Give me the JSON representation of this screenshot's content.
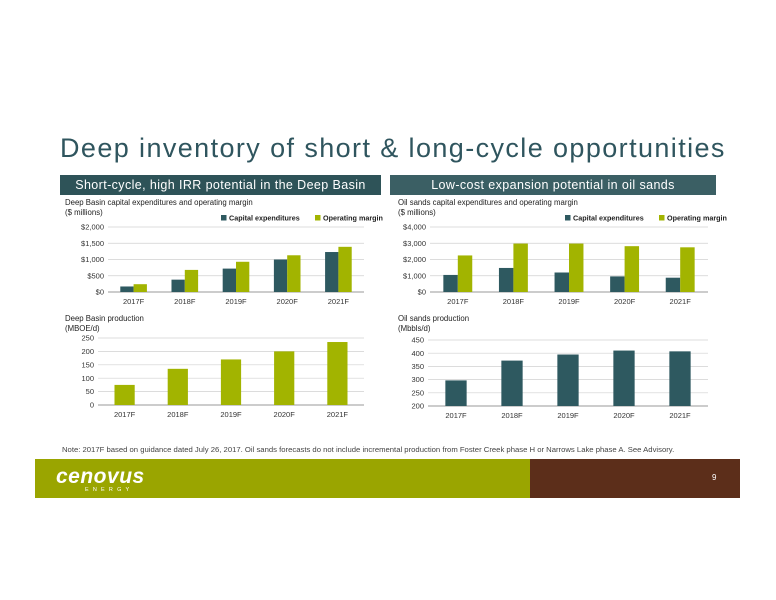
{
  "slide": {
    "title": "Deep inventory of short & long-cycle opportunities",
    "left_banner": "Short-cycle, high IRR potential in the Deep Basin",
    "right_banner": "Low-cost expansion potential in oil sands",
    "note": "Note: 2017F based on guidance dated July 26, 2017. Oil sands forecasts do not include incremental production from Foster Creek phase H or Narrows Lake phase A. See Advisory.",
    "logo_text": "cenovus",
    "logo_subtext": "ENERGY",
    "page_number": "9"
  },
  "colors": {
    "capex": "#2e5960",
    "margin": "#a2b400",
    "title": "#2f555e",
    "banner": "#2e5358",
    "footer": "#9aa500",
    "footer_accent": "#5c2e1a"
  },
  "chart_data": [
    {
      "id": "deep-basin-capex",
      "type": "bar",
      "title_line1": "Deep Basin capital expenditures and operating margin",
      "title_line2": "($ millions)",
      "categories": [
        "2017F",
        "2018F",
        "2019F",
        "2020F",
        "2021F"
      ],
      "series": [
        {
          "name": "Capital expenditures",
          "values": [
            170,
            380,
            720,
            1000,
            1230
          ],
          "color": "#2e5960"
        },
        {
          "name": "Operating margin",
          "values": [
            240,
            680,
            930,
            1130,
            1390
          ],
          "color": "#a2b400"
        }
      ],
      "ylim": [
        0,
        2000
      ],
      "yticks": [
        0,
        500,
        1000,
        1500,
        2000
      ],
      "ytick_labels": [
        "$0",
        "$500",
        "$1,000",
        "$1,500",
        "$2,000"
      ],
      "legend": "top-right",
      "grid": true
    },
    {
      "id": "oil-sands-capex",
      "type": "bar",
      "title_line1": "Oil sands capital expenditures and operating margin",
      "title_line2": "($ millions)",
      "categories": [
        "2017F",
        "2018F",
        "2019F",
        "2020F",
        "2021F"
      ],
      "series": [
        {
          "name": "Capital expenditures",
          "values": [
            1050,
            1480,
            1200,
            960,
            880
          ],
          "color": "#2e5960"
        },
        {
          "name": "Operating margin",
          "values": [
            2250,
            2980,
            2980,
            2820,
            2750
          ],
          "color": "#a2b400"
        }
      ],
      "ylim": [
        0,
        4000
      ],
      "yticks": [
        0,
        1000,
        2000,
        3000,
        4000
      ],
      "ytick_labels": [
        "$0",
        "$1,000",
        "$2,000",
        "$3,000",
        "$4,000"
      ],
      "legend": "top-right",
      "grid": true
    },
    {
      "id": "deep-basin-production",
      "type": "bar",
      "title_line1": "Deep Basin production",
      "title_line2": "(MBOE/d)",
      "categories": [
        "2017F",
        "2018F",
        "2019F",
        "2020F",
        "2021F"
      ],
      "series": [
        {
          "values": [
            75,
            135,
            170,
            200,
            235
          ],
          "color": "#a2b400"
        }
      ],
      "ylim": [
        0,
        250
      ],
      "yticks": [
        0,
        50,
        100,
        150,
        200,
        250
      ],
      "ytick_labels": [
        "0",
        "50",
        "100",
        "150",
        "200",
        "250"
      ],
      "grid": true
    },
    {
      "id": "oil-sands-production",
      "type": "bar",
      "title_line1": "Oil sands production",
      "title_line2": "(Mbbls/d)",
      "categories": [
        "2017F",
        "2018F",
        "2019F",
        "2020F",
        "2021F"
      ],
      "series": [
        {
          "values": [
            297,
            372,
            395,
            410,
            407
          ],
          "color": "#2e5960"
        }
      ],
      "ylim": [
        200,
        450
      ],
      "yticks": [
        200,
        250,
        300,
        350,
        400,
        450
      ],
      "ytick_labels": [
        "200",
        "250",
        "300",
        "350",
        "400",
        "450"
      ],
      "grid": true
    }
  ]
}
